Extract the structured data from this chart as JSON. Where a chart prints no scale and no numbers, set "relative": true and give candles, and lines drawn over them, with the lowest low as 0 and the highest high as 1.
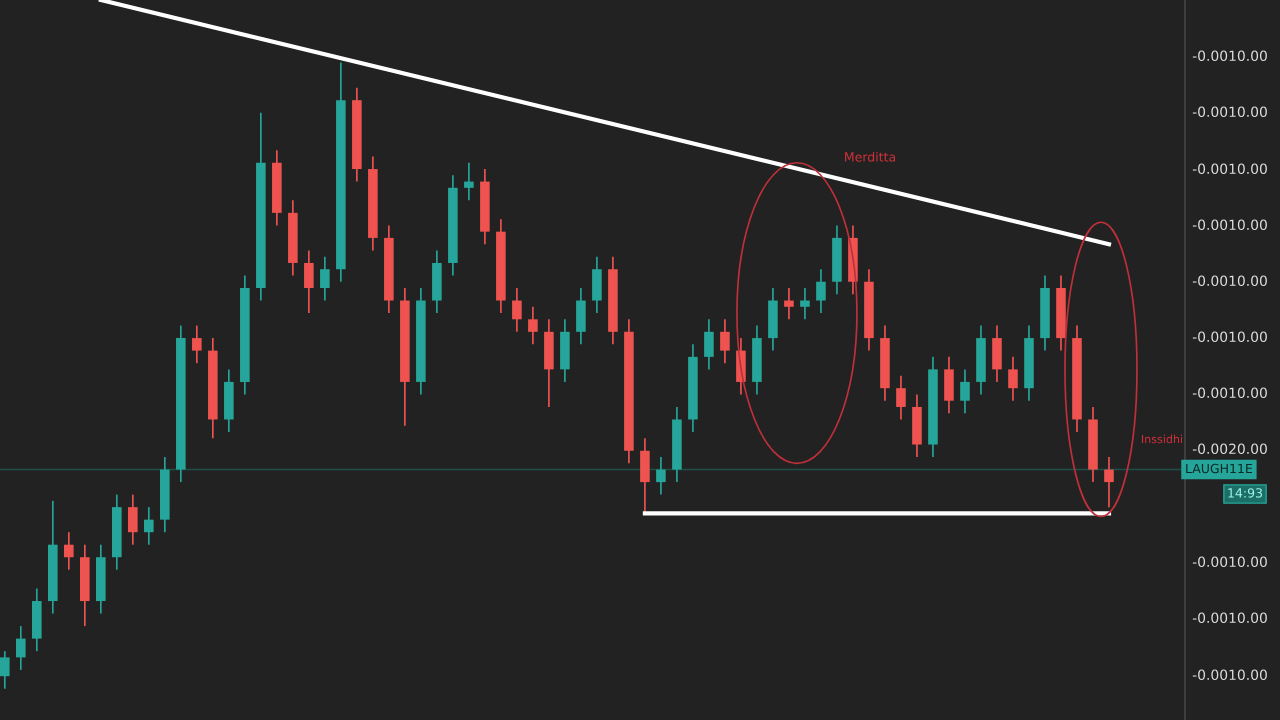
{
  "chart_data": {
    "type": "candlestick",
    "relative": true,
    "categories": [
      null,
      null,
      null,
      null,
      null,
      null,
      null,
      null,
      null,
      null,
      null,
      null,
      null,
      null,
      null,
      null,
      null,
      null,
      null,
      null,
      null,
      null,
      null,
      null,
      null,
      null,
      null,
      null,
      null,
      null,
      null,
      null,
      null,
      null,
      null,
      null,
      null,
      null,
      null,
      null,
      null,
      null,
      null,
      null,
      null,
      null,
      null,
      null,
      null,
      null,
      null,
      null,
      null,
      null,
      null,
      null,
      null,
      null,
      null,
      null,
      null,
      null,
      null,
      null,
      null,
      null,
      null,
      null,
      null,
      null
    ],
    "ohlc": [
      [
        0.02,
        0.06,
        0,
        0.05
      ],
      [
        0.05,
        0.1,
        0.03,
        0.08
      ],
      [
        0.08,
        0.16,
        0.06,
        0.14
      ],
      [
        0.14,
        0.3,
        0.12,
        0.23
      ],
      [
        0.23,
        0.25,
        0.19,
        0.21
      ],
      [
        0.21,
        0.23,
        0.1,
        0.14
      ],
      [
        0.14,
        0.23,
        0.12,
        0.21
      ],
      [
        0.21,
        0.31,
        0.19,
        0.29
      ],
      [
        0.29,
        0.31,
        0.23,
        0.25
      ],
      [
        0.25,
        0.29,
        0.23,
        0.27
      ],
      [
        0.27,
        0.37,
        0.25,
        0.35
      ],
      [
        0.35,
        0.58,
        0.33,
        0.56
      ],
      [
        0.56,
        0.58,
        0.52,
        0.54
      ],
      [
        0.54,
        0.56,
        0.4,
        0.43
      ],
      [
        0.43,
        0.51,
        0.41,
        0.49
      ],
      [
        0.49,
        0.66,
        0.47,
        0.64
      ],
      [
        0.64,
        0.92,
        0.62,
        0.84
      ],
      [
        0.84,
        0.86,
        0.74,
        0.76
      ],
      [
        0.76,
        0.78,
        0.66,
        0.68
      ],
      [
        0.68,
        0.7,
        0.6,
        0.64
      ],
      [
        0.64,
        0.69,
        0.62,
        0.67
      ],
      [
        0.67,
        1,
        0.65,
        0.94
      ],
      [
        0.94,
        0.96,
        0.81,
        0.83
      ],
      [
        0.83,
        0.85,
        0.7,
        0.72
      ],
      [
        0.72,
        0.74,
        0.6,
        0.62
      ],
      [
        0.62,
        0.64,
        0.42,
        0.49
      ],
      [
        0.49,
        0.64,
        0.47,
        0.62
      ],
      [
        0.62,
        0.7,
        0.6,
        0.68
      ],
      [
        0.68,
        0.82,
        0.66,
        0.8
      ],
      [
        0.8,
        0.84,
        0.78,
        0.81
      ],
      [
        0.81,
        0.83,
        0.71,
        0.73
      ],
      [
        0.73,
        0.75,
        0.6,
        0.62
      ],
      [
        0.62,
        0.64,
        0.57,
        0.59
      ],
      [
        0.59,
        0.61,
        0.55,
        0.57
      ],
      [
        0.57,
        0.59,
        0.45,
        0.51
      ],
      [
        0.51,
        0.59,
        0.49,
        0.57
      ],
      [
        0.57,
        0.64,
        0.55,
        0.62
      ],
      [
        0.62,
        0.69,
        0.6,
        0.67
      ],
      [
        0.67,
        0.69,
        0.55,
        0.57
      ],
      [
        0.57,
        0.59,
        0.36,
        0.38
      ],
      [
        0.38,
        0.4,
        0.28,
        0.33
      ],
      [
        0.33,
        0.37,
        0.31,
        0.35
      ],
      [
        0.35,
        0.45,
        0.33,
        0.43
      ],
      [
        0.43,
        0.55,
        0.41,
        0.53
      ],
      [
        0.53,
        0.59,
        0.51,
        0.57
      ],
      [
        0.57,
        0.59,
        0.52,
        0.54
      ],
      [
        0.54,
        0.56,
        0.47,
        0.49
      ],
      [
        0.49,
        0.58,
        0.47,
        0.56
      ],
      [
        0.56,
        0.64,
        0.54,
        0.62
      ],
      [
        0.62,
        0.64,
        0.59,
        0.61
      ],
      [
        0.61,
        0.64,
        0.59,
        0.62
      ],
      [
        0.62,
        0.67,
        0.6,
        0.65
      ],
      [
        0.65,
        0.74,
        0.63,
        0.72
      ],
      [
        0.72,
        0.74,
        0.63,
        0.65
      ],
      [
        0.65,
        0.67,
        0.54,
        0.56
      ],
      [
        0.56,
        0.58,
        0.46,
        0.48
      ],
      [
        0.48,
        0.5,
        0.43,
        0.45
      ],
      [
        0.45,
        0.47,
        0.37,
        0.39
      ],
      [
        0.39,
        0.53,
        0.37,
        0.51
      ],
      [
        0.51,
        0.53,
        0.44,
        0.46
      ],
      [
        0.46,
        0.51,
        0.44,
        0.49
      ],
      [
        0.49,
        0.58,
        0.47,
        0.56
      ],
      [
        0.56,
        0.58,
        0.49,
        0.51
      ],
      [
        0.51,
        0.53,
        0.46,
        0.48
      ],
      [
        0.48,
        0.58,
        0.46,
        0.56
      ],
      [
        0.56,
        0.66,
        0.54,
        0.64
      ],
      [
        0.64,
        0.66,
        0.54,
        0.56
      ],
      [
        0.56,
        0.58,
        0.41,
        0.43
      ],
      [
        0.43,
        0.45,
        0.33,
        0.35
      ],
      [
        0.35,
        0.37,
        0.29,
        0.33
      ]
    ],
    "colors": [
      "#26a69a",
      "#26a69a",
      "#26a69a",
      "#26a69a",
      "#ef5350",
      "#ef5350",
      "#26a69a",
      "#26a69a",
      "#ef5350",
      "#26a69a",
      "#26a69a",
      "#26a69a",
      "#ef5350",
      "#ef5350",
      "#26a69a",
      "#26a69a",
      "#26a69a",
      "#ef5350",
      "#ef5350",
      "#ef5350",
      "#26a69a",
      "#26a69a",
      "#ef5350",
      "#ef5350",
      "#ef5350",
      "#ef5350",
      "#26a69a",
      "#26a69a",
      "#26a69a",
      "#26a69a",
      "#ef5350",
      "#ef5350",
      "#ef5350",
      "#ef5350",
      "#ef5350",
      "#26a69a",
      "#26a69a",
      "#26a69a",
      "#ef5350",
      "#ef5350",
      "#ef5350",
      "#26a69a",
      "#26a69a",
      "#26a69a",
      "#26a69a",
      "#ef5350",
      "#ef5350",
      "#26a69a",
      "#26a69a",
      "#ef5350",
      "#26a69a",
      "#26a69a",
      "#26a69a",
      "#ef5350",
      "#ef5350",
      "#ef5350",
      "#ef5350",
      "#ef5350",
      "#26a69a",
      "#ef5350",
      "#26a69a",
      "#26a69a",
      "#ef5350",
      "#ef5350",
      "#26a69a",
      "#26a69a",
      "#ef5350",
      "#ef5350",
      "#ef5350",
      "#ef5350"
    ],
    "series": [
      {
        "type": "line",
        "color": "#ffffff",
        "values": [
          null,
          null,
          null,
          null,
          null,
          null,
          1.1,
          null,
          null,
          null,
          null,
          null,
          null,
          null,
          null,
          null,
          null,
          null,
          null,
          null,
          null,
          null,
          null,
          null,
          null,
          null,
          null,
          null,
          null,
          null,
          null,
          null,
          null,
          null,
          null,
          null,
          null,
          null,
          null,
          null,
          null,
          null,
          null,
          null,
          null,
          null,
          null,
          null,
          null,
          null,
          null,
          null,
          null,
          null,
          null,
          null,
          null,
          null,
          null,
          null,
          null,
          null,
          null,
          null,
          null,
          null,
          null,
          null,
          null,
          0.71
        ]
      },
      {
        "type": "line",
        "color": "#ffffff",
        "values": [
          null,
          null,
          null,
          null,
          null,
          null,
          null,
          null,
          null,
          null,
          null,
          null,
          null,
          null,
          null,
          null,
          null,
          null,
          null,
          null,
          null,
          null,
          null,
          null,
          null,
          null,
          null,
          null,
          null,
          null,
          null,
          null,
          null,
          null,
          null,
          null,
          null,
          null,
          null,
          null,
          0.28,
          null,
          null,
          null,
          null,
          null,
          null,
          null,
          null,
          null,
          null,
          null,
          null,
          null,
          null,
          null,
          null,
          null,
          null,
          null,
          null,
          null,
          null,
          null,
          null,
          null,
          null,
          null,
          null,
          0.28
        ]
      }
    ],
    "ref_lines": [
      {
        "axis": "y",
        "value": 0.35,
        "label": "LAUGH11E",
        "color": "#1f4f4a"
      }
    ],
    "annotations": [
      "Merditta",
      "Inssidhi",
      "14:93",
      "-0.0010.00",
      "-0.0010.00",
      "-0.0010.00",
      "-0.0010.00",
      "-0.0010.00",
      "-0.0010.00",
      "-0.0010.00",
      "-0.0020.00",
      "-0.0010.00",
      "-0.0010.00",
      "-0.0010.00"
    ],
    "legend": false
  }
}
